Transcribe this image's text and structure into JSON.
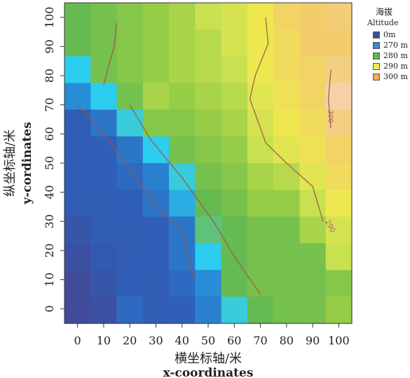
{
  "chart_data": {
    "type": "heatmap",
    "title": "",
    "xlabel_zh": "横坐标轴/米",
    "xlabel_en": "x-coordinates",
    "ylabel_zh": "纵坐标轴/米",
    "ylabel_en": "y-cordinates",
    "x_ticks": [
      0,
      10,
      20,
      30,
      40,
      50,
      60,
      70,
      80,
      90,
      100
    ],
    "y_ticks": [
      0,
      10,
      20,
      30,
      40,
      50,
      60,
      70,
      80,
      90,
      100
    ],
    "xlim": [
      -5,
      105
    ],
    "ylim": [
      -5,
      105
    ],
    "grid": false,
    "legend": {
      "placement": "right",
      "title_zh": "海拔",
      "title_en": "Altitude",
      "items": [
        {
          "label": "0m",
          "color": "#3d4d9e"
        },
        {
          "label": "270 m",
          "color": "#3f86c8"
        },
        {
          "label": "280 m",
          "color": "#5dba4e"
        },
        {
          "label": "290 m",
          "color": "#f0eb4c"
        },
        {
          "label": "300 m",
          "color": "#f4a85a"
        }
      ]
    },
    "altitude_grid_rows_y100_to_y0": [
      [
        281,
        282,
        283,
        284,
        285,
        287,
        288,
        290,
        293,
        294,
        295
      ],
      [
        281,
        282,
        283,
        284,
        285,
        286,
        288,
        290,
        292,
        294,
        294
      ],
      [
        272,
        282,
        283,
        284,
        285,
        286,
        287,
        290,
        292,
        293,
        296
      ],
      [
        270,
        272,
        282,
        285,
        284,
        285,
        286,
        289,
        291,
        293,
        299
      ],
      [
        265,
        268,
        273,
        283,
        283,
        284,
        285,
        288,
        290,
        292,
        296
      ],
      [
        265,
        266,
        268,
        272,
        282,
        283,
        284,
        287,
        289,
        291,
        293
      ],
      [
        265,
        266,
        267,
        269,
        273,
        282,
        283,
        285,
        286,
        289,
        292
      ],
      [
        265,
        265,
        266,
        268,
        271,
        281,
        282,
        284,
        284,
        287,
        290
      ],
      [
        263,
        265,
        265,
        266,
        268,
        278,
        281,
        282,
        282,
        285,
        288
      ],
      [
        262,
        264,
        265,
        266,
        268,
        272,
        281,
        282,
        282,
        282,
        287
      ],
      [
        261,
        263,
        266,
        265,
        267,
        270,
        281,
        282,
        282,
        282,
        283
      ],
      [
        261,
        262,
        267,
        265,
        266,
        269,
        273,
        281,
        282,
        282,
        284
      ]
    ],
    "contours": [
      {
        "label": "270",
        "points": [
          [
            0,
            70
          ],
          [
            10,
            60
          ],
          [
            20,
            48
          ],
          [
            30,
            35
          ],
          [
            40,
            27
          ],
          [
            43,
            15
          ],
          [
            45,
            10
          ]
        ]
      },
      {
        "label": "280",
        "points": [
          [
            10,
            77
          ],
          [
            14,
            90
          ],
          [
            15,
            98
          ]
        ]
      },
      {
        "label": "280",
        "points": [
          [
            20,
            70
          ],
          [
            28,
            58
          ],
          [
            40,
            45
          ],
          [
            52,
            30
          ],
          [
            60,
            18
          ],
          [
            70,
            5
          ]
        ]
      },
      {
        "label": "290",
        "points": [
          [
            72,
            100
          ],
          [
            73,
            91
          ],
          [
            68,
            80
          ],
          [
            66,
            72
          ],
          [
            72,
            57
          ],
          [
            80,
            50
          ],
          [
            90,
            42
          ],
          [
            94,
            30
          ]
        ]
      },
      {
        "label": "300",
        "points": [
          [
            97,
            82
          ],
          [
            96,
            72
          ],
          [
            97,
            62
          ]
        ]
      }
    ]
  }
}
